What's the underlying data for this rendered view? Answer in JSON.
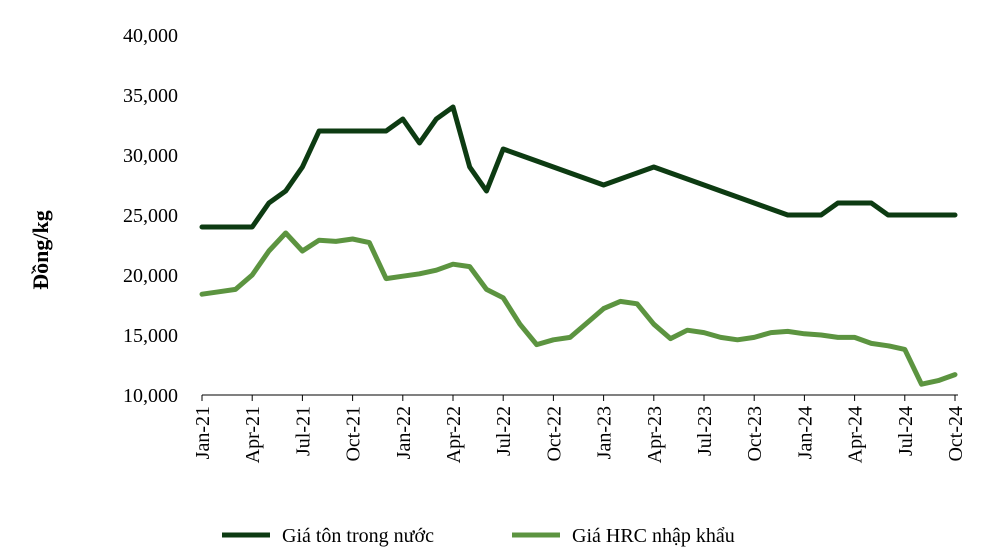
{
  "chart_data": {
    "type": "line",
    "title": "",
    "xlabel": "",
    "ylabel": "Đồng/kg",
    "ylim": [
      10000,
      40000
    ],
    "yticks": [
      "10,000",
      "15,000",
      "20,000",
      "25,000",
      "30,000",
      "35,000",
      "40,000"
    ],
    "ytick_values": [
      10000,
      15000,
      20000,
      25000,
      30000,
      35000,
      40000
    ],
    "x_tick_labels": [
      "Jan-21",
      "Apr-21",
      "Jul-21",
      "Oct-21",
      "Jan-22",
      "Apr-22",
      "Jul-22",
      "Oct-22",
      "Jan-23",
      "Apr-23",
      "Jul-23",
      "Oct-23",
      "Jan-24",
      "Apr-24",
      "Jul-24",
      "Oct-24"
    ],
    "x": [
      "Jan-21",
      "Feb-21",
      "Mar-21",
      "Apr-21",
      "May-21",
      "Jun-21",
      "Jul-21",
      "Aug-21",
      "Sep-21",
      "Oct-21",
      "Nov-21",
      "Dec-21",
      "Jan-22",
      "Feb-22",
      "Mar-22",
      "Apr-22",
      "May-22",
      "Jun-22",
      "Jul-22",
      "Aug-22",
      "Sep-22",
      "Oct-22",
      "Nov-22",
      "Dec-22",
      "Jan-23",
      "Feb-23",
      "Mar-23",
      "Apr-23",
      "May-23",
      "Jun-23",
      "Jul-23",
      "Aug-23",
      "Sep-23",
      "Oct-23",
      "Nov-23",
      "Dec-23",
      "Jan-24",
      "Feb-24",
      "Mar-24",
      "Apr-24",
      "May-24",
      "Jun-24",
      "Jul-24",
      "Aug-24",
      "Sep-24",
      "Oct-24"
    ],
    "series": [
      {
        "name": "Giá tôn trong nước",
        "color": "#0d3b12",
        "values": [
          24000,
          24000,
          24000,
          24000,
          26000,
          27000,
          29000,
          32000,
          32000,
          32000,
          32000,
          32000,
          33000,
          31000,
          33000,
          34000,
          29000,
          27000,
          30500,
          30000,
          29500,
          29000,
          28500,
          28000,
          27500,
          28000,
          28500,
          29000,
          28500,
          28000,
          27500,
          27000,
          26500,
          26000,
          25500,
          25000,
          25000,
          25000,
          26000,
          26000,
          26000,
          25000,
          25000,
          25000,
          25000,
          25000
        ]
      },
      {
        "name": "Giá HRC nhập khẩu",
        "color": "#5c9440",
        "values": [
          18400,
          18600,
          18800,
          20000,
          22000,
          23500,
          22000,
          22900,
          22800,
          23000,
          22700,
          19700,
          19900,
          20100,
          20400,
          20900,
          20700,
          18800,
          18100,
          15900,
          14200,
          14600,
          14800,
          16000,
          17200,
          17800,
          17600,
          15900,
          14700,
          15400,
          15200,
          14800,
          14600,
          14800,
          15200,
          15300,
          15100,
          15000,
          14800,
          14800,
          14300,
          14100,
          13800,
          10900,
          11200,
          11700
        ]
      }
    ],
    "grid": false,
    "legend_position": "bottom"
  }
}
